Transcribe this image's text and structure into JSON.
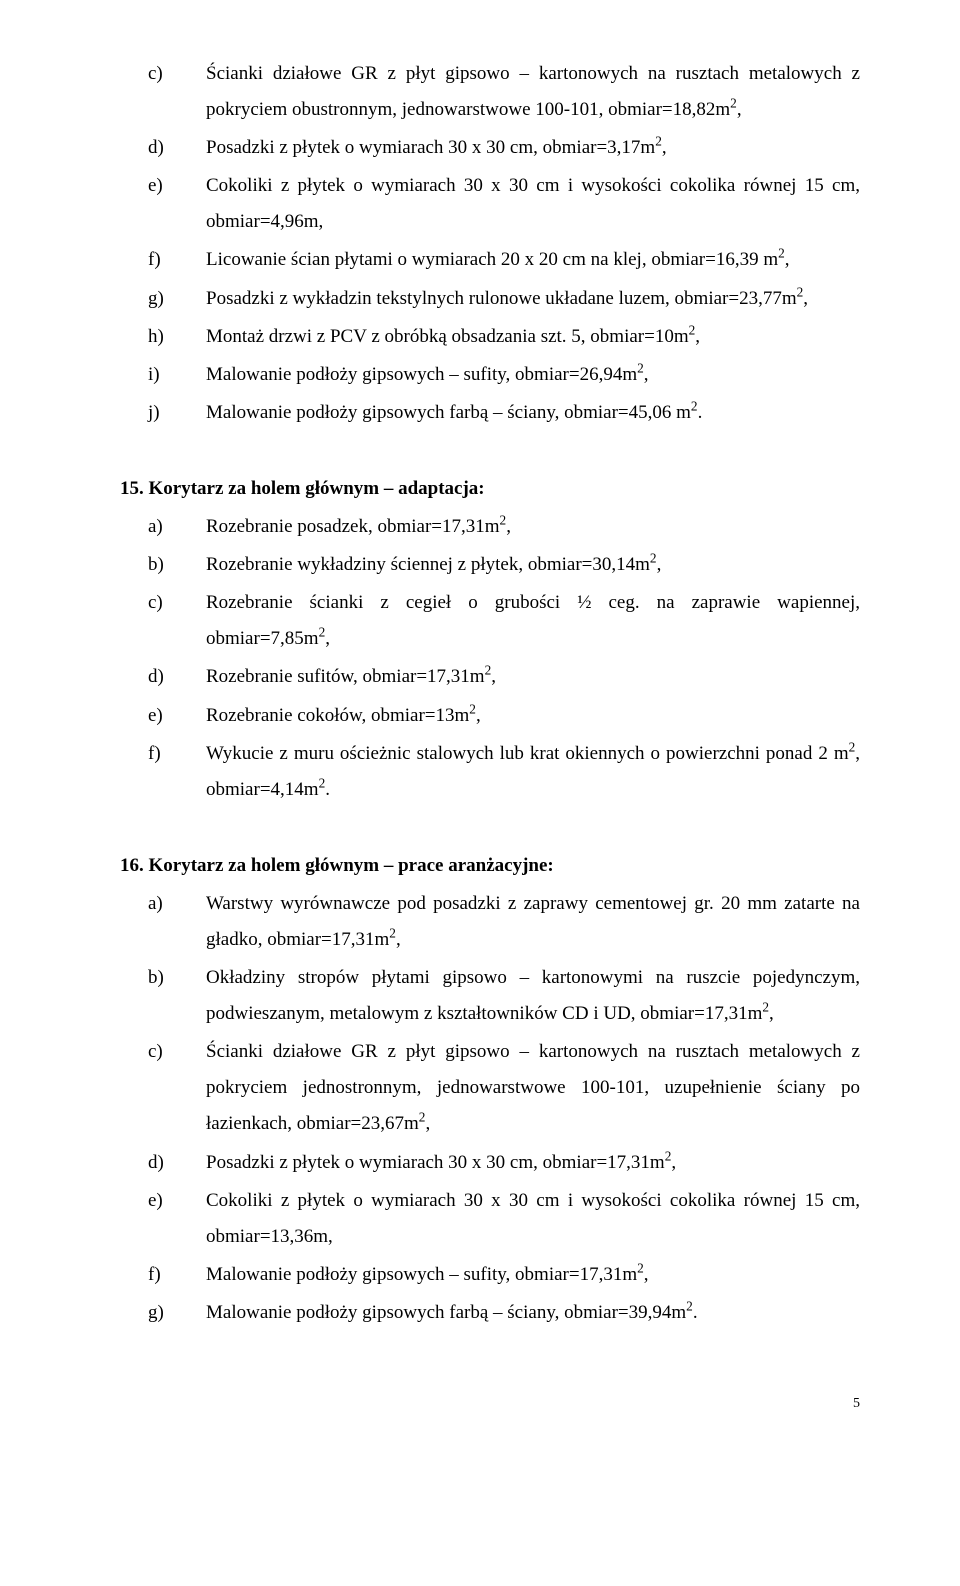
{
  "section14_cont": {
    "items": [
      {
        "marker": "c)",
        "text": "Ścianki działowe GR z płyt gipsowo – kartonowych na rusztach metalowych z pokryciem obustronnym, jednowarstwowe 100-101, obmiar=18,82m²,"
      },
      {
        "marker": "d)",
        "text": "Posadzki z płytek o wymiarach 30 x 30 cm, obmiar=3,17m²,"
      },
      {
        "marker": "e)",
        "text": "Cokoliki z płytek o wymiarach 30 x 30 cm i wysokości cokolika równej 15 cm, obmiar=4,96m,"
      },
      {
        "marker": "f)",
        "text": "Licowanie ścian płytami o wymiarach 20 x 20 cm na klej, obmiar=16,39 m²,"
      },
      {
        "marker": "g)",
        "text": "Posadzki z wykładzin tekstylnych rulonowe układane luzem, obmiar=23,77m²,"
      },
      {
        "marker": "h)",
        "text": "Montaż drzwi z PCV z obróbką obsadzania szt. 5, obmiar=10m²,"
      },
      {
        "marker": "i)",
        "text": "Malowanie podłoży gipsowych – sufity, obmiar=26,94m²,"
      },
      {
        "marker": "j)",
        "text": "Malowanie podłoży gipsowych farbą – ściany, obmiar=45,06 m²."
      }
    ]
  },
  "section15": {
    "heading": "15. Korytarz za holem głównym – adaptacja:",
    "items": [
      {
        "marker": "a)",
        "text": "Rozebranie posadzek, obmiar=17,31m²,"
      },
      {
        "marker": "b)",
        "text": "Rozebranie wykładziny ściennej z płytek, obmiar=30,14m²,"
      },
      {
        "marker": "c)",
        "text": "Rozebranie ścianki z cegieł o grubości ½ ceg. na zaprawie wapiennej, obmiar=7,85m²,"
      },
      {
        "marker": "d)",
        "text": "Rozebranie sufitów, obmiar=17,31m²,"
      },
      {
        "marker": "e)",
        "text": "Rozebranie cokołów, obmiar=13m²,"
      },
      {
        "marker": "f)",
        "text": "Wykucie z muru ościeżnic stalowych lub krat okiennych o powierzchni ponad 2 m², obmiar=4,14m²."
      }
    ]
  },
  "section16": {
    "heading": "16. Korytarz za holem głównym – prace aranżacyjne:",
    "items": [
      {
        "marker": "a)",
        "text": "Warstwy wyrównawcze pod posadzki z zaprawy cementowej gr. 20 mm zatarte na gładko, obmiar=17,31m²,"
      },
      {
        "marker": "b)",
        "text": "Okładziny stropów płytami gipsowo – kartonowymi na ruszcie pojedynczym, podwieszanym, metalowym z kształtowników CD i UD, obmiar=17,31m²,"
      },
      {
        "marker": "c)",
        "text": "Ścianki działowe GR z płyt gipsowo – kartonowych na rusztach metalowych z pokryciem jednostronnym, jednowarstwowe 100-101, uzupełnienie ściany po łazienkach, obmiar=23,67m²,"
      },
      {
        "marker": "d)",
        "text": "Posadzki z płytek o wymiarach 30 x 30 cm, obmiar=17,31m²,"
      },
      {
        "marker": "e)",
        "text": "Cokoliki z płytek o wymiarach 30 x 30 cm i wysokości cokolika równej 15 cm, obmiar=13,36m,"
      },
      {
        "marker": "f)",
        "text": "Malowanie podłoży gipsowych – sufity, obmiar=17,31m²,"
      },
      {
        "marker": "g)",
        "text": "Malowanie podłoży gipsowych farbą – ściany, obmiar=39,94m²."
      }
    ]
  },
  "page_number": "5"
}
